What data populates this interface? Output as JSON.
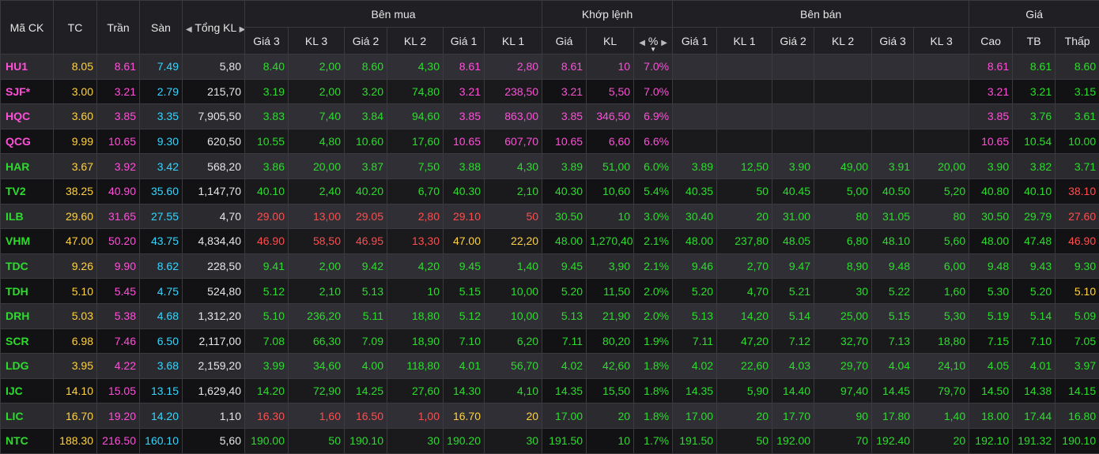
{
  "headers": {
    "symbol": "Mã CK",
    "ref": "TC",
    "ceiling": "Trần",
    "floor": "Sàn",
    "total_vol": "Tổng KL",
    "buy_group": "Bên mua",
    "match_group": "Khớp lệnh",
    "sell_group": "Bên bán",
    "price_group": "Giá",
    "buy_cols": [
      "Giá 3",
      "KL 3",
      "Giá 2",
      "KL 2",
      "Giá 1",
      "KL 1"
    ],
    "match_cols": [
      "Giá",
      "KL",
      "%"
    ],
    "sell_cols": [
      "Giá 1",
      "KL 1",
      "Giá 2",
      "KL 2",
      "Giá 3",
      "KL 3"
    ],
    "price_cols": [
      "Cao",
      "TB",
      "Thấp"
    ]
  },
  "colors": {
    "ceiling": "#ff4fd8",
    "floor": "#33d6ff",
    "ref": "#ffd23f",
    "up": "#2ddc2d",
    "down": "#ff4d4d",
    "neutral": "#e6e6e6"
  },
  "rows": [
    {
      "sym": [
        "HU1",
        "c"
      ],
      "tc": "8.05",
      "tran": "8.61",
      "san": "7.49",
      "tkl": "5,80",
      "buy": [
        [
          "8.40",
          "u"
        ],
        [
          "2,00",
          "u"
        ],
        [
          "8.60",
          "u"
        ],
        [
          "4,30",
          "u"
        ],
        [
          "8.61",
          "c"
        ],
        [
          "2,80",
          "c"
        ]
      ],
      "match": [
        [
          "8.61",
          "c"
        ],
        [
          "10",
          "c"
        ],
        [
          "7.0%",
          "c"
        ]
      ],
      "sell": [
        [
          "",
          ""
        ],
        [
          "",
          ""
        ],
        [
          "",
          ""
        ],
        [
          "",
          ""
        ],
        [
          "",
          ""
        ],
        [
          "",
          ""
        ]
      ],
      "price": [
        [
          "8.61",
          "c"
        ],
        [
          "8.61",
          "u"
        ],
        [
          "8.60",
          "u"
        ]
      ]
    },
    {
      "sym": [
        "SJF*",
        "c"
      ],
      "tc": "3.00",
      "tran": "3.21",
      "san": "2.79",
      "tkl": "215,70",
      "buy": [
        [
          "3.19",
          "u"
        ],
        [
          "2,00",
          "u"
        ],
        [
          "3.20",
          "u"
        ],
        [
          "74,80",
          "u"
        ],
        [
          "3.21",
          "c"
        ],
        [
          "238,50",
          "c"
        ]
      ],
      "match": [
        [
          "3.21",
          "c"
        ],
        [
          "5,50",
          "c"
        ],
        [
          "7.0%",
          "c"
        ]
      ],
      "sell": [
        [
          "",
          ""
        ],
        [
          "",
          ""
        ],
        [
          "",
          ""
        ],
        [
          "",
          ""
        ],
        [
          "",
          ""
        ],
        [
          "",
          ""
        ]
      ],
      "price": [
        [
          "3.21",
          "c"
        ],
        [
          "3.21",
          "u"
        ],
        [
          "3.15",
          "u"
        ]
      ]
    },
    {
      "sym": [
        "HQC",
        "c"
      ],
      "tc": "3.60",
      "tran": "3.85",
      "san": "3.35",
      "tkl": "7,905,50",
      "buy": [
        [
          "3.83",
          "u"
        ],
        [
          "7,40",
          "u"
        ],
        [
          "3.84",
          "u"
        ],
        [
          "94,60",
          "u"
        ],
        [
          "3.85",
          "c"
        ],
        [
          "863,00",
          "c"
        ]
      ],
      "match": [
        [
          "3.85",
          "c"
        ],
        [
          "346,50",
          "c"
        ],
        [
          "6.9%",
          "c"
        ]
      ],
      "sell": [
        [
          "",
          ""
        ],
        [
          "",
          ""
        ],
        [
          "",
          ""
        ],
        [
          "",
          ""
        ],
        [
          "",
          ""
        ],
        [
          "",
          ""
        ]
      ],
      "price": [
        [
          "3.85",
          "c"
        ],
        [
          "3.76",
          "u"
        ],
        [
          "3.61",
          "u"
        ]
      ]
    },
    {
      "sym": [
        "QCG",
        "c"
      ],
      "tc": "9.99",
      "tran": "10.65",
      "san": "9.30",
      "tkl": "620,50",
      "buy": [
        [
          "10.55",
          "u"
        ],
        [
          "4,80",
          "u"
        ],
        [
          "10.60",
          "u"
        ],
        [
          "17,60",
          "u"
        ],
        [
          "10.65",
          "c"
        ],
        [
          "607,70",
          "c"
        ]
      ],
      "match": [
        [
          "10.65",
          "c"
        ],
        [
          "6,60",
          "c"
        ],
        [
          "6.6%",
          "c"
        ]
      ],
      "sell": [
        [
          "",
          ""
        ],
        [
          "",
          ""
        ],
        [
          "",
          ""
        ],
        [
          "",
          ""
        ],
        [
          "",
          ""
        ],
        [
          "",
          ""
        ]
      ],
      "price": [
        [
          "10.65",
          "c"
        ],
        [
          "10.54",
          "u"
        ],
        [
          "10.00",
          "u"
        ]
      ]
    },
    {
      "sym": [
        "HAR",
        "u"
      ],
      "tc": "3.67",
      "tran": "3.92",
      "san": "3.42",
      "tkl": "568,20",
      "buy": [
        [
          "3.86",
          "u"
        ],
        [
          "20,00",
          "u"
        ],
        [
          "3.87",
          "u"
        ],
        [
          "7,50",
          "u"
        ],
        [
          "3.88",
          "u"
        ],
        [
          "4,30",
          "u"
        ]
      ],
      "match": [
        [
          "3.89",
          "u"
        ],
        [
          "51,00",
          "u"
        ],
        [
          "6.0%",
          "u"
        ]
      ],
      "sell": [
        [
          "3.89",
          "u"
        ],
        [
          "12,50",
          "u"
        ],
        [
          "3.90",
          "u"
        ],
        [
          "49,00",
          "u"
        ],
        [
          "3.91",
          "u"
        ],
        [
          "20,00",
          "u"
        ]
      ],
      "price": [
        [
          "3.90",
          "u"
        ],
        [
          "3.82",
          "u"
        ],
        [
          "3.71",
          "u"
        ]
      ]
    },
    {
      "sym": [
        "TV2",
        "u"
      ],
      "tc": "38.25",
      "tran": "40.90",
      "san": "35.60",
      "tkl": "1,147,70",
      "buy": [
        [
          "40.10",
          "u"
        ],
        [
          "2,40",
          "u"
        ],
        [
          "40.20",
          "u"
        ],
        [
          "6,70",
          "u"
        ],
        [
          "40.30",
          "u"
        ],
        [
          "2,10",
          "u"
        ]
      ],
      "match": [
        [
          "40.30",
          "u"
        ],
        [
          "10,60",
          "u"
        ],
        [
          "5.4%",
          "u"
        ]
      ],
      "sell": [
        [
          "40.35",
          "u"
        ],
        [
          "50",
          "u"
        ],
        [
          "40.45",
          "u"
        ],
        [
          "5,00",
          "u"
        ],
        [
          "40.50",
          "u"
        ],
        [
          "5,20",
          "u"
        ]
      ],
      "price": [
        [
          "40.80",
          "u"
        ],
        [
          "40.10",
          "u"
        ],
        [
          "38.10",
          "d"
        ]
      ]
    },
    {
      "sym": [
        "ILB",
        "u"
      ],
      "tc": "29.60",
      "tran": "31.65",
      "san": "27.55",
      "tkl": "4,70",
      "buy": [
        [
          "29.00",
          "d"
        ],
        [
          "13,00",
          "d"
        ],
        [
          "29.05",
          "d"
        ],
        [
          "2,80",
          "d"
        ],
        [
          "29.10",
          "d"
        ],
        [
          "50",
          "d"
        ]
      ],
      "match": [
        [
          "30.50",
          "u"
        ],
        [
          "10",
          "u"
        ],
        [
          "3.0%",
          "u"
        ]
      ],
      "sell": [
        [
          "30.40",
          "u"
        ],
        [
          "20",
          "u"
        ],
        [
          "31.00",
          "u"
        ],
        [
          "80",
          "u"
        ],
        [
          "31.05",
          "u"
        ],
        [
          "80",
          "u"
        ]
      ],
      "price": [
        [
          "30.50",
          "u"
        ],
        [
          "29.79",
          "u"
        ],
        [
          "27.60",
          "d"
        ]
      ]
    },
    {
      "sym": [
        "VHM",
        "u"
      ],
      "tc": "47.00",
      "tran": "50.20",
      "san": "43.75",
      "tkl": "4,834,40",
      "buy": [
        [
          "46.90",
          "d"
        ],
        [
          "58,50",
          "d"
        ],
        [
          "46.95",
          "d"
        ],
        [
          "13,30",
          "d"
        ],
        [
          "47.00",
          "r"
        ],
        [
          "22,20",
          "r"
        ]
      ],
      "match": [
        [
          "48.00",
          "u"
        ],
        [
          "1,270,40",
          "u"
        ],
        [
          "2.1%",
          "u"
        ]
      ],
      "sell": [
        [
          "48.00",
          "u"
        ],
        [
          "237,80",
          "u"
        ],
        [
          "48.05",
          "u"
        ],
        [
          "6,80",
          "u"
        ],
        [
          "48.10",
          "u"
        ],
        [
          "5,60",
          "u"
        ]
      ],
      "price": [
        [
          "48.00",
          "u"
        ],
        [
          "47.48",
          "u"
        ],
        [
          "46.90",
          "d"
        ]
      ]
    },
    {
      "sym": [
        "TDC",
        "u"
      ],
      "tc": "9.26",
      "tran": "9.90",
      "san": "8.62",
      "tkl": "228,50",
      "buy": [
        [
          "9.41",
          "u"
        ],
        [
          "2,00",
          "u"
        ],
        [
          "9.42",
          "u"
        ],
        [
          "4,20",
          "u"
        ],
        [
          "9.45",
          "u"
        ],
        [
          "1,40",
          "u"
        ]
      ],
      "match": [
        [
          "9.45",
          "u"
        ],
        [
          "3,90",
          "u"
        ],
        [
          "2.1%",
          "u"
        ]
      ],
      "sell": [
        [
          "9.46",
          "u"
        ],
        [
          "2,70",
          "u"
        ],
        [
          "9.47",
          "u"
        ],
        [
          "8,90",
          "u"
        ],
        [
          "9.48",
          "u"
        ],
        [
          "6,00",
          "u"
        ]
      ],
      "price": [
        [
          "9.48",
          "u"
        ],
        [
          "9.43",
          "u"
        ],
        [
          "9.30",
          "u"
        ]
      ]
    },
    {
      "sym": [
        "TDH",
        "u"
      ],
      "tc": "5.10",
      "tran": "5.45",
      "san": "4.75",
      "tkl": "524,80",
      "buy": [
        [
          "5.12",
          "u"
        ],
        [
          "2,10",
          "u"
        ],
        [
          "5.13",
          "u"
        ],
        [
          "10",
          "u"
        ],
        [
          "5.15",
          "u"
        ],
        [
          "10,00",
          "u"
        ]
      ],
      "match": [
        [
          "5.20",
          "u"
        ],
        [
          "11,50",
          "u"
        ],
        [
          "2.0%",
          "u"
        ]
      ],
      "sell": [
        [
          "5.20",
          "u"
        ],
        [
          "4,70",
          "u"
        ],
        [
          "5.21",
          "u"
        ],
        [
          "30",
          "u"
        ],
        [
          "5.22",
          "u"
        ],
        [
          "1,60",
          "u"
        ]
      ],
      "price": [
        [
          "5.30",
          "u"
        ],
        [
          "5.20",
          "u"
        ],
        [
          "5.10",
          "r"
        ]
      ]
    },
    {
      "sym": [
        "DRH",
        "u"
      ],
      "tc": "5.03",
      "tran": "5.38",
      "san": "4.68",
      "tkl": "1,312,20",
      "buy": [
        [
          "5.10",
          "u"
        ],
        [
          "236,20",
          "u"
        ],
        [
          "5.11",
          "u"
        ],
        [
          "18,80",
          "u"
        ],
        [
          "5.12",
          "u"
        ],
        [
          "10,00",
          "u"
        ]
      ],
      "match": [
        [
          "5.13",
          "u"
        ],
        [
          "21,90",
          "u"
        ],
        [
          "2.0%",
          "u"
        ]
      ],
      "sell": [
        [
          "5.13",
          "u"
        ],
        [
          "14,20",
          "u"
        ],
        [
          "5.14",
          "u"
        ],
        [
          "25,00",
          "u"
        ],
        [
          "5.15",
          "u"
        ],
        [
          "5,30",
          "u"
        ]
      ],
      "price": [
        [
          "5.19",
          "u"
        ],
        [
          "5.14",
          "u"
        ],
        [
          "5.09",
          "u"
        ]
      ]
    },
    {
      "sym": [
        "SCR",
        "u"
      ],
      "tc": "6.98",
      "tran": "7.46",
      "san": "6.50",
      "tkl": "2,117,00",
      "buy": [
        [
          "7.08",
          "u"
        ],
        [
          "66,30",
          "u"
        ],
        [
          "7.09",
          "u"
        ],
        [
          "18,90",
          "u"
        ],
        [
          "7.10",
          "u"
        ],
        [
          "6,20",
          "u"
        ]
      ],
      "match": [
        [
          "7.11",
          "u"
        ],
        [
          "80,20",
          "u"
        ],
        [
          "1.9%",
          "u"
        ]
      ],
      "sell": [
        [
          "7.11",
          "u"
        ],
        [
          "47,20",
          "u"
        ],
        [
          "7.12",
          "u"
        ],
        [
          "32,70",
          "u"
        ],
        [
          "7.13",
          "u"
        ],
        [
          "18,80",
          "u"
        ]
      ],
      "price": [
        [
          "7.15",
          "u"
        ],
        [
          "7.10",
          "u"
        ],
        [
          "7.05",
          "u"
        ]
      ]
    },
    {
      "sym": [
        "LDG",
        "u"
      ],
      "tc": "3.95",
      "tran": "4.22",
      "san": "3.68",
      "tkl": "2,159,20",
      "buy": [
        [
          "3.99",
          "u"
        ],
        [
          "34,60",
          "u"
        ],
        [
          "4.00",
          "u"
        ],
        [
          "118,80",
          "u"
        ],
        [
          "4.01",
          "u"
        ],
        [
          "56,70",
          "u"
        ]
      ],
      "match": [
        [
          "4.02",
          "u"
        ],
        [
          "42,60",
          "u"
        ],
        [
          "1.8%",
          "u"
        ]
      ],
      "sell": [
        [
          "4.02",
          "u"
        ],
        [
          "22,60",
          "u"
        ],
        [
          "4.03",
          "u"
        ],
        [
          "29,70",
          "u"
        ],
        [
          "4.04",
          "u"
        ],
        [
          "24,10",
          "u"
        ]
      ],
      "price": [
        [
          "4.05",
          "u"
        ],
        [
          "4.01",
          "u"
        ],
        [
          "3.97",
          "u"
        ]
      ]
    },
    {
      "sym": [
        "IJC",
        "u"
      ],
      "tc": "14.10",
      "tran": "15.05",
      "san": "13.15",
      "tkl": "1,629,40",
      "buy": [
        [
          "14.20",
          "u"
        ],
        [
          "72,90",
          "u"
        ],
        [
          "14.25",
          "u"
        ],
        [
          "27,60",
          "u"
        ],
        [
          "14.30",
          "u"
        ],
        [
          "4,10",
          "u"
        ]
      ],
      "match": [
        [
          "14.35",
          "u"
        ],
        [
          "15,50",
          "u"
        ],
        [
          "1.8%",
          "u"
        ]
      ],
      "sell": [
        [
          "14.35",
          "u"
        ],
        [
          "5,90",
          "u"
        ],
        [
          "14.40",
          "u"
        ],
        [
          "97,40",
          "u"
        ],
        [
          "14.45",
          "u"
        ],
        [
          "79,70",
          "u"
        ]
      ],
      "price": [
        [
          "14.50",
          "u"
        ],
        [
          "14.38",
          "u"
        ],
        [
          "14.15",
          "u"
        ]
      ]
    },
    {
      "sym": [
        "LIC",
        "u"
      ],
      "tc": "16.70",
      "tran": "19.20",
      "san": "14.20",
      "tkl": "1,10",
      "buy": [
        [
          "16.30",
          "d"
        ],
        [
          "1,60",
          "d"
        ],
        [
          "16.50",
          "d"
        ],
        [
          "1,00",
          "d"
        ],
        [
          "16.70",
          "r"
        ],
        [
          "20",
          "r"
        ]
      ],
      "match": [
        [
          "17.00",
          "u"
        ],
        [
          "20",
          "u"
        ],
        [
          "1.8%",
          "u"
        ]
      ],
      "sell": [
        [
          "17.00",
          "u"
        ],
        [
          "20",
          "u"
        ],
        [
          "17.70",
          "u"
        ],
        [
          "90",
          "u"
        ],
        [
          "17.80",
          "u"
        ],
        [
          "1,40",
          "u"
        ]
      ],
      "price": [
        [
          "18.00",
          "u"
        ],
        [
          "17.44",
          "u"
        ],
        [
          "16.80",
          "u"
        ]
      ]
    },
    {
      "sym": [
        "NTC",
        "u"
      ],
      "tc": "188.30",
      "tran": "216.50",
      "san": "160.10",
      "tkl": "5,60",
      "buy": [
        [
          "190.00",
          "u"
        ],
        [
          "50",
          "u"
        ],
        [
          "190.10",
          "u"
        ],
        [
          "30",
          "u"
        ],
        [
          "190.20",
          "u"
        ],
        [
          "30",
          "u"
        ]
      ],
      "match": [
        [
          "191.50",
          "u"
        ],
        [
          "10",
          "u"
        ],
        [
          "1.7%",
          "u"
        ]
      ],
      "sell": [
        [
          "191.50",
          "u"
        ],
        [
          "50",
          "u"
        ],
        [
          "192.00",
          "u"
        ],
        [
          "70",
          "u"
        ],
        [
          "192.40",
          "u"
        ],
        [
          "20",
          "u"
        ]
      ],
      "price": [
        [
          "192.10",
          "u"
        ],
        [
          "191.32",
          "u"
        ],
        [
          "190.10",
          "u"
        ]
      ]
    }
  ]
}
